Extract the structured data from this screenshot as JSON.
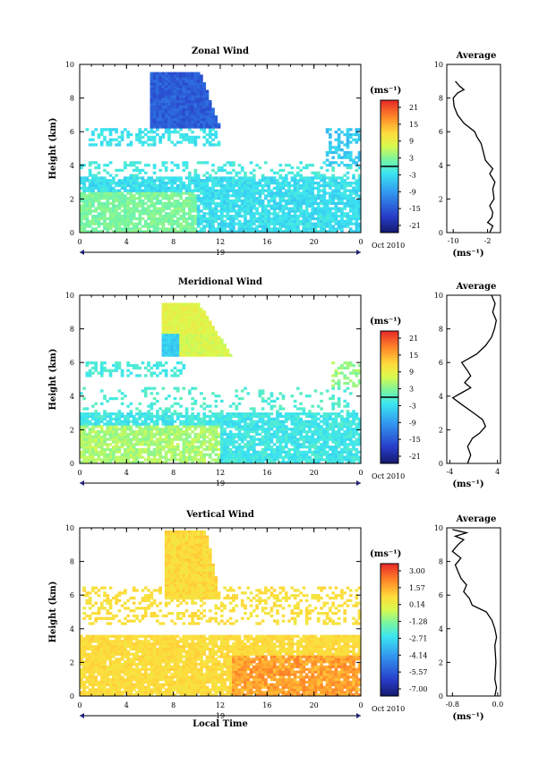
{
  "chart_data": [
    {
      "type": "heatmap",
      "title": "Zonal Wind",
      "ylabel": "Height (km)",
      "xticks": [
        "0",
        "4",
        "8",
        "12",
        "16",
        "20",
        "0"
      ],
      "yticks": [
        "0",
        "2",
        "4",
        "6",
        "8",
        "10"
      ],
      "xlim": [
        0,
        24
      ],
      "ylim": [
        0,
        10
      ],
      "day_label": "19",
      "date_label": "Oct 2010",
      "colorbar": {
        "unit": "(ms⁻¹)",
        "ticks": [
          "21",
          "15",
          "9",
          "3",
          "-3",
          "-9",
          "-15",
          "-21"
        ],
        "vmin": -24,
        "vmax": 24
      },
      "average": {
        "title": "Average",
        "unit": "(ms⁻¹)",
        "xticks": [
          "-10",
          "-2"
        ],
        "xlim": [
          -11.5,
          1
        ],
        "yticks": [
          "0",
          "2",
          "4",
          "6",
          "8",
          "10"
        ],
        "profile": [
          [
            -1.5,
            0.0
          ],
          [
            -0.8,
            0.4
          ],
          [
            -2.0,
            0.6
          ],
          [
            -1.0,
            0.9
          ],
          [
            -0.8,
            1.2
          ],
          [
            -1.5,
            1.6
          ],
          [
            -0.5,
            2.0
          ],
          [
            -0.8,
            2.6
          ],
          [
            -0.3,
            3.0
          ],
          [
            -1.5,
            3.5
          ],
          [
            -0.8,
            3.8
          ],
          [
            -1.5,
            4.0
          ],
          [
            -2.5,
            4.3
          ],
          [
            -3.0,
            4.8
          ],
          [
            -3.5,
            5.3
          ],
          [
            -4.5,
            5.7
          ],
          [
            -5.0,
            6.0
          ],
          [
            -7.5,
            6.5
          ],
          [
            -9.0,
            7.0
          ],
          [
            -9.8,
            7.5
          ],
          [
            -10.0,
            8.0
          ],
          [
            -9.0,
            8.3
          ],
          [
            -7.5,
            8.5
          ],
          [
            -8.5,
            8.7
          ],
          [
            -9.5,
            9.0
          ]
        ]
      }
    },
    {
      "type": "heatmap",
      "title": "Meridional Wind",
      "ylabel": "Height (km)",
      "xticks": [
        "0",
        "4",
        "8",
        "12",
        "16",
        "20",
        "0"
      ],
      "yticks": [
        "0",
        "2",
        "4",
        "6",
        "8",
        "10"
      ],
      "xlim": [
        0,
        24
      ],
      "ylim": [
        0,
        10
      ],
      "day_label": "19",
      "date_label": "Oct 2010",
      "colorbar": {
        "unit": "(ms⁻¹)",
        "ticks": [
          "21",
          "15",
          "9",
          "3",
          "-3",
          "-9",
          "-15",
          "-21"
        ],
        "vmin": -24,
        "vmax": 24
      },
      "average": {
        "title": "Average",
        "unit": "(ms⁻¹)",
        "xticks": [
          "-4",
          "4"
        ],
        "xlim": [
          -4.5,
          4.5
        ],
        "yticks": [
          "0",
          "2",
          "4",
          "6",
          "8",
          "10"
        ],
        "profile": [
          [
            -1.0,
            0.0
          ],
          [
            -0.5,
            0.5
          ],
          [
            -1.0,
            1.0
          ],
          [
            -0.2,
            1.5
          ],
          [
            1.0,
            1.8
          ],
          [
            2.0,
            2.2
          ],
          [
            1.5,
            2.6
          ],
          [
            0.0,
            3.0
          ],
          [
            -2.0,
            3.5
          ],
          [
            -3.5,
            3.9
          ],
          [
            -2.0,
            4.2
          ],
          [
            -0.5,
            4.5
          ],
          [
            -1.5,
            4.8
          ],
          [
            -0.5,
            5.2
          ],
          [
            -1.0,
            5.5
          ],
          [
            -2.0,
            6.0
          ],
          [
            0.5,
            6.5
          ],
          [
            2.0,
            7.0
          ],
          [
            3.0,
            7.5
          ],
          [
            3.5,
            8.0
          ],
          [
            3.8,
            8.5
          ],
          [
            3.2,
            9.0
          ],
          [
            3.6,
            9.5
          ],
          [
            3.0,
            10.0
          ]
        ]
      }
    },
    {
      "type": "heatmap",
      "title": "Vertical Wind",
      "ylabel": "Height (km)",
      "xlabel": "Local Time",
      "xticks": [
        "0",
        "4",
        "8",
        "12",
        "16",
        "20",
        "0"
      ],
      "yticks": [
        "0",
        "2",
        "4",
        "6",
        "8",
        "10"
      ],
      "xlim": [
        0,
        24
      ],
      "ylim": [
        0,
        10
      ],
      "day_label": "19",
      "date_label": "Oct 2010",
      "colorbar": {
        "unit": "(ms⁻¹)",
        "ticks": [
          "3.00",
          "1.57",
          "0.14",
          "-1.28",
          "-2.71",
          "-4.14",
          "-5.57",
          "-7.00"
        ],
        "vmin": -7.7,
        "vmax": 3.7
      },
      "average": {
        "title": "Average",
        "unit": "(ms⁻¹)",
        "xticks": [
          "-0.8",
          "0.0"
        ],
        "xlim": [
          -0.9,
          0.05
        ],
        "yticks": [
          "0",
          "2",
          "4",
          "6",
          "8",
          "10"
        ],
        "profile": [
          [
            -0.05,
            0.0
          ],
          [
            -0.02,
            0.5
          ],
          [
            -0.05,
            1.0
          ],
          [
            -0.03,
            2.0
          ],
          [
            -0.05,
            3.0
          ],
          [
            -0.02,
            3.5
          ],
          [
            -0.05,
            4.0
          ],
          [
            -0.1,
            4.5
          ],
          [
            -0.2,
            5.0
          ],
          [
            -0.45,
            5.4
          ],
          [
            -0.5,
            5.8
          ],
          [
            -0.6,
            6.2
          ],
          [
            -0.55,
            6.6
          ],
          [
            -0.65,
            7.0
          ],
          [
            -0.7,
            7.4
          ],
          [
            -0.75,
            7.8
          ],
          [
            -0.65,
            8.2
          ],
          [
            -0.8,
            8.6
          ],
          [
            -0.7,
            9.0
          ],
          [
            -0.6,
            9.3
          ],
          [
            -0.75,
            9.5
          ],
          [
            -0.55,
            9.7
          ],
          [
            -0.8,
            9.9
          ]
        ]
      }
    }
  ]
}
